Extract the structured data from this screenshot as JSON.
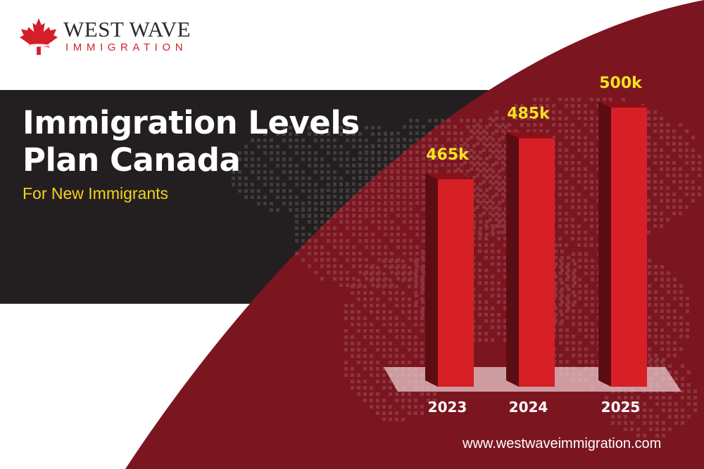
{
  "brand": {
    "name": "WEST WAVE",
    "sub": "IMMIGRATION",
    "logo_icon": "maple-leaf-icon"
  },
  "headline": {
    "line1": "Immigration Levels",
    "line2": "Plan Canada",
    "subtitle": "For New Immigrants"
  },
  "footer": {
    "url": "www.westwaveimmigration.com"
  },
  "colors": {
    "dark_band": "#231f20",
    "maroon": "#7b1620",
    "bar_front": "#d71f26",
    "bar_side": "#5c0d13",
    "bar_top": "#8a1119",
    "label_yellow": "#f6e21f",
    "brand_red": "#d31f2a"
  },
  "chart_data": {
    "type": "bar",
    "categories": [
      "2023",
      "2024",
      "2025"
    ],
    "values": [
      465,
      485,
      500
    ],
    "value_labels": [
      "465k",
      "485k",
      "500k"
    ],
    "title": "",
    "xlabel": "",
    "ylabel": "",
    "grid": false,
    "legend": "none"
  }
}
